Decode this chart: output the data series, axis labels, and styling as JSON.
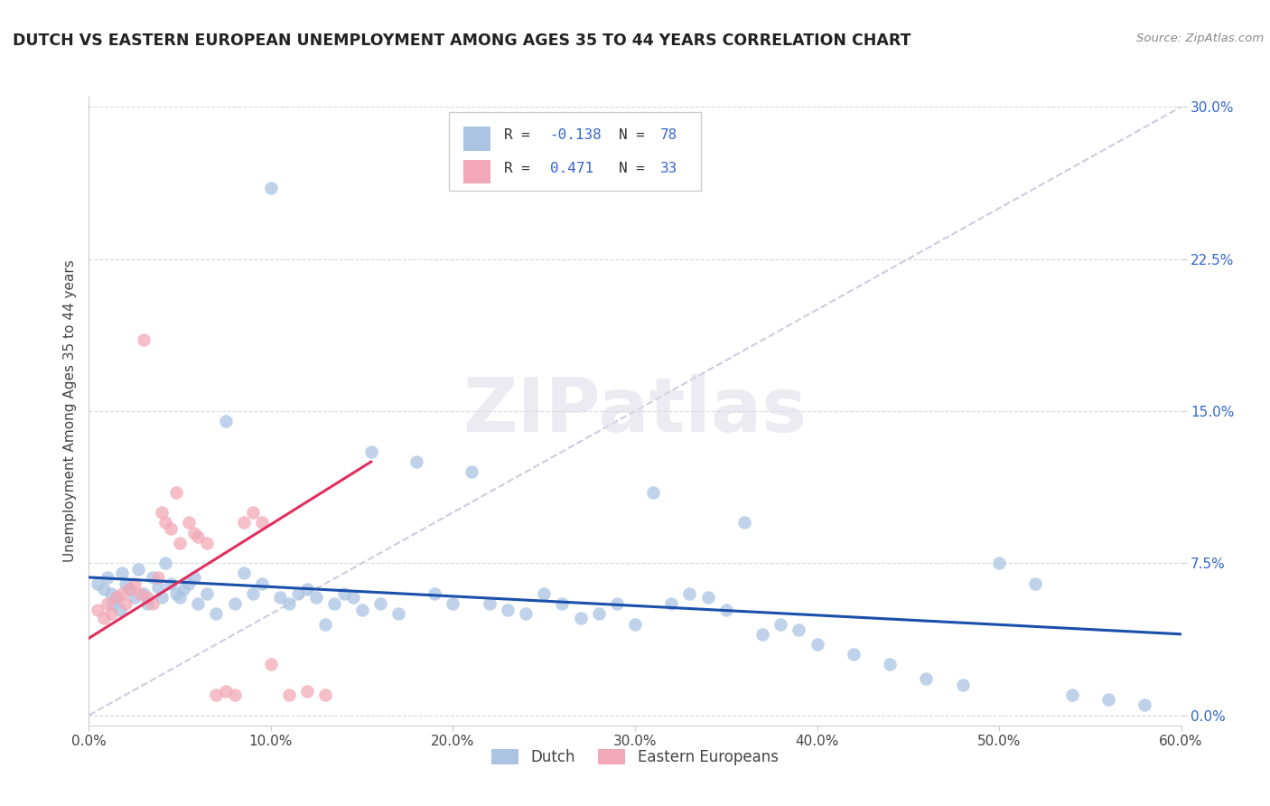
{
  "title": "DUTCH VS EASTERN EUROPEAN UNEMPLOYMENT AMONG AGES 35 TO 44 YEARS CORRELATION CHART",
  "source": "Source: ZipAtlas.com",
  "ylabel": "Unemployment Among Ages 35 to 44 years",
  "xlabel_ticks": [
    "0.0%",
    "10.0%",
    "20.0%",
    "30.0%",
    "40.0%",
    "50.0%",
    "60.0%"
  ],
  "xlabel_vals": [
    0.0,
    0.1,
    0.2,
    0.3,
    0.4,
    0.5,
    0.6
  ],
  "ylabel_ticks": [
    "0.0%",
    "7.5%",
    "15.0%",
    "22.5%",
    "30.0%"
  ],
  "ylabel_vals": [
    0.0,
    0.075,
    0.15,
    0.225,
    0.3
  ],
  "xlim": [
    0.0,
    0.6
  ],
  "ylim": [
    -0.005,
    0.305
  ],
  "dutch_color": "#aac4e2",
  "eastern_color": "#f2a8b8",
  "dutch_line_color": "#1a4faa",
  "eastern_line_color": "#e03060",
  "diagonal_color": "#ccccdd",
  "legend_box_color": "#eeeeee",
  "dutch_R": -0.138,
  "dutch_N": 78,
  "eastern_R": 0.471,
  "eastern_N": 33,
  "dutch_x": [
    0.005,
    0.008,
    0.01,
    0.012,
    0.013,
    0.015,
    0.017,
    0.018,
    0.02,
    0.022,
    0.025,
    0.027,
    0.03,
    0.032,
    0.035,
    0.038,
    0.04,
    0.042,
    0.045,
    0.048,
    0.05,
    0.052,
    0.055,
    0.058,
    0.06,
    0.065,
    0.07,
    0.075,
    0.08,
    0.085,
    0.09,
    0.095,
    0.1,
    0.105,
    0.11,
    0.115,
    0.12,
    0.125,
    0.13,
    0.135,
    0.14,
    0.145,
    0.15,
    0.155,
    0.16,
    0.17,
    0.18,
    0.19,
    0.2,
    0.21,
    0.22,
    0.23,
    0.24,
    0.25,
    0.26,
    0.27,
    0.28,
    0.29,
    0.3,
    0.31,
    0.32,
    0.33,
    0.34,
    0.35,
    0.36,
    0.37,
    0.38,
    0.39,
    0.4,
    0.42,
    0.44,
    0.46,
    0.48,
    0.5,
    0.52,
    0.54,
    0.56,
    0.58
  ],
  "dutch_y": [
    0.065,
    0.062,
    0.068,
    0.06,
    0.055,
    0.058,
    0.052,
    0.07,
    0.065,
    0.062,
    0.058,
    0.072,
    0.06,
    0.055,
    0.068,
    0.063,
    0.058,
    0.075,
    0.065,
    0.06,
    0.058,
    0.062,
    0.065,
    0.068,
    0.055,
    0.06,
    0.05,
    0.145,
    0.055,
    0.07,
    0.06,
    0.065,
    0.26,
    0.058,
    0.055,
    0.06,
    0.062,
    0.058,
    0.045,
    0.055,
    0.06,
    0.058,
    0.052,
    0.13,
    0.055,
    0.05,
    0.125,
    0.06,
    0.055,
    0.12,
    0.055,
    0.052,
    0.05,
    0.06,
    0.055,
    0.048,
    0.05,
    0.055,
    0.045,
    0.11,
    0.055,
    0.06,
    0.058,
    0.052,
    0.095,
    0.04,
    0.045,
    0.042,
    0.035,
    0.03,
    0.025,
    0.018,
    0.015,
    0.075,
    0.065,
    0.01,
    0.008,
    0.005
  ],
  "eastern_x": [
    0.005,
    0.008,
    0.01,
    0.012,
    0.015,
    0.018,
    0.02,
    0.022,
    0.025,
    0.028,
    0.03,
    0.032,
    0.035,
    0.038,
    0.04,
    0.042,
    0.045,
    0.048,
    0.05,
    0.055,
    0.058,
    0.06,
    0.065,
    0.07,
    0.075,
    0.08,
    0.085,
    0.09,
    0.095,
    0.1,
    0.11,
    0.12,
    0.13
  ],
  "eastern_y": [
    0.052,
    0.048,
    0.055,
    0.05,
    0.058,
    0.06,
    0.055,
    0.062,
    0.065,
    0.06,
    0.185,
    0.058,
    0.055,
    0.068,
    0.1,
    0.095,
    0.092,
    0.11,
    0.085,
    0.095,
    0.09,
    0.088,
    0.085,
    0.01,
    0.012,
    0.01,
    0.095,
    0.1,
    0.095,
    0.025,
    0.01,
    0.012,
    0.01
  ],
  "dutch_trend_x": [
    0.0,
    0.6
  ],
  "dutch_trend_y": [
    0.068,
    0.04
  ],
  "eastern_trend_x": [
    0.0,
    0.155
  ],
  "eastern_trend_y": [
    0.038,
    0.125
  ]
}
